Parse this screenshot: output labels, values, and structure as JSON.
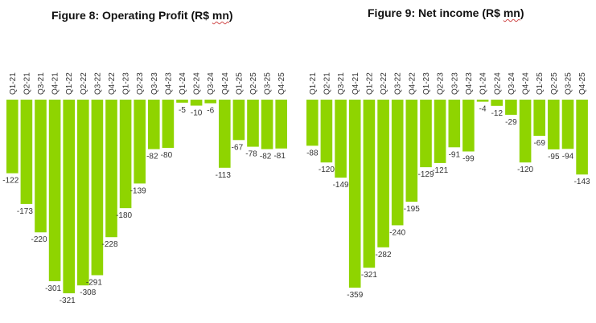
{
  "chart_data": [
    {
      "type": "bar",
      "title_main": "Figure 8: Operating Profit (R$ ",
      "title_squiggle": "mn",
      "title_end": ")",
      "xlabel": "",
      "ylabel": "",
      "categories": [
        "Q1-21",
        "Q2-21",
        "Q3-21",
        "Q4-21",
        "Q1-22",
        "Q2-22",
        "Q3-22",
        "Q4-22",
        "Q1-23",
        "Q2-23",
        "Q3-23",
        "Q4-23",
        "Q1-24",
        "Q2-24",
        "Q3-24",
        "Q4-24",
        "Q1-25",
        "Q2-25",
        "Q3-25",
        "Q4-25"
      ],
      "values": [
        -122,
        -173,
        -220,
        -301,
        -321,
        -308,
        -291,
        -228,
        -180,
        -139,
        -82,
        -80,
        -5,
        -10,
        -6,
        -113,
        -67,
        -78,
        -82,
        -81
      ],
      "ylim": [
        -321,
        0
      ],
      "grid": false,
      "legend": "none",
      "color": "#8fd400"
    },
    {
      "type": "bar",
      "title_main": "Figure 9: Net income (R$ ",
      "title_squiggle": "mn",
      "title_end": ")",
      "xlabel": "",
      "ylabel": "",
      "categories": [
        "Q1-21",
        "Q2-21",
        "Q3-21",
        "Q4-21",
        "Q1-22",
        "Q2-22",
        "Q3-22",
        "Q4-22",
        "Q1-23",
        "Q2-23",
        "Q3-23",
        "Q4-23",
        "Q1-24",
        "Q2-24",
        "Q3-24",
        "Q4-24",
        "Q1-25",
        "Q2-25",
        "Q3-25",
        "Q4-25"
      ],
      "values": [
        -88,
        -120,
        -149,
        -359,
        -321,
        -282,
        -240,
        -195,
        -129,
        -121,
        -91,
        -99,
        -4,
        -12,
        -29,
        -120,
        -69,
        -95,
        -94,
        -143
      ],
      "ylim": [
        -359,
        0
      ],
      "grid": false,
      "legend": "none",
      "color": "#8fd400"
    }
  ]
}
